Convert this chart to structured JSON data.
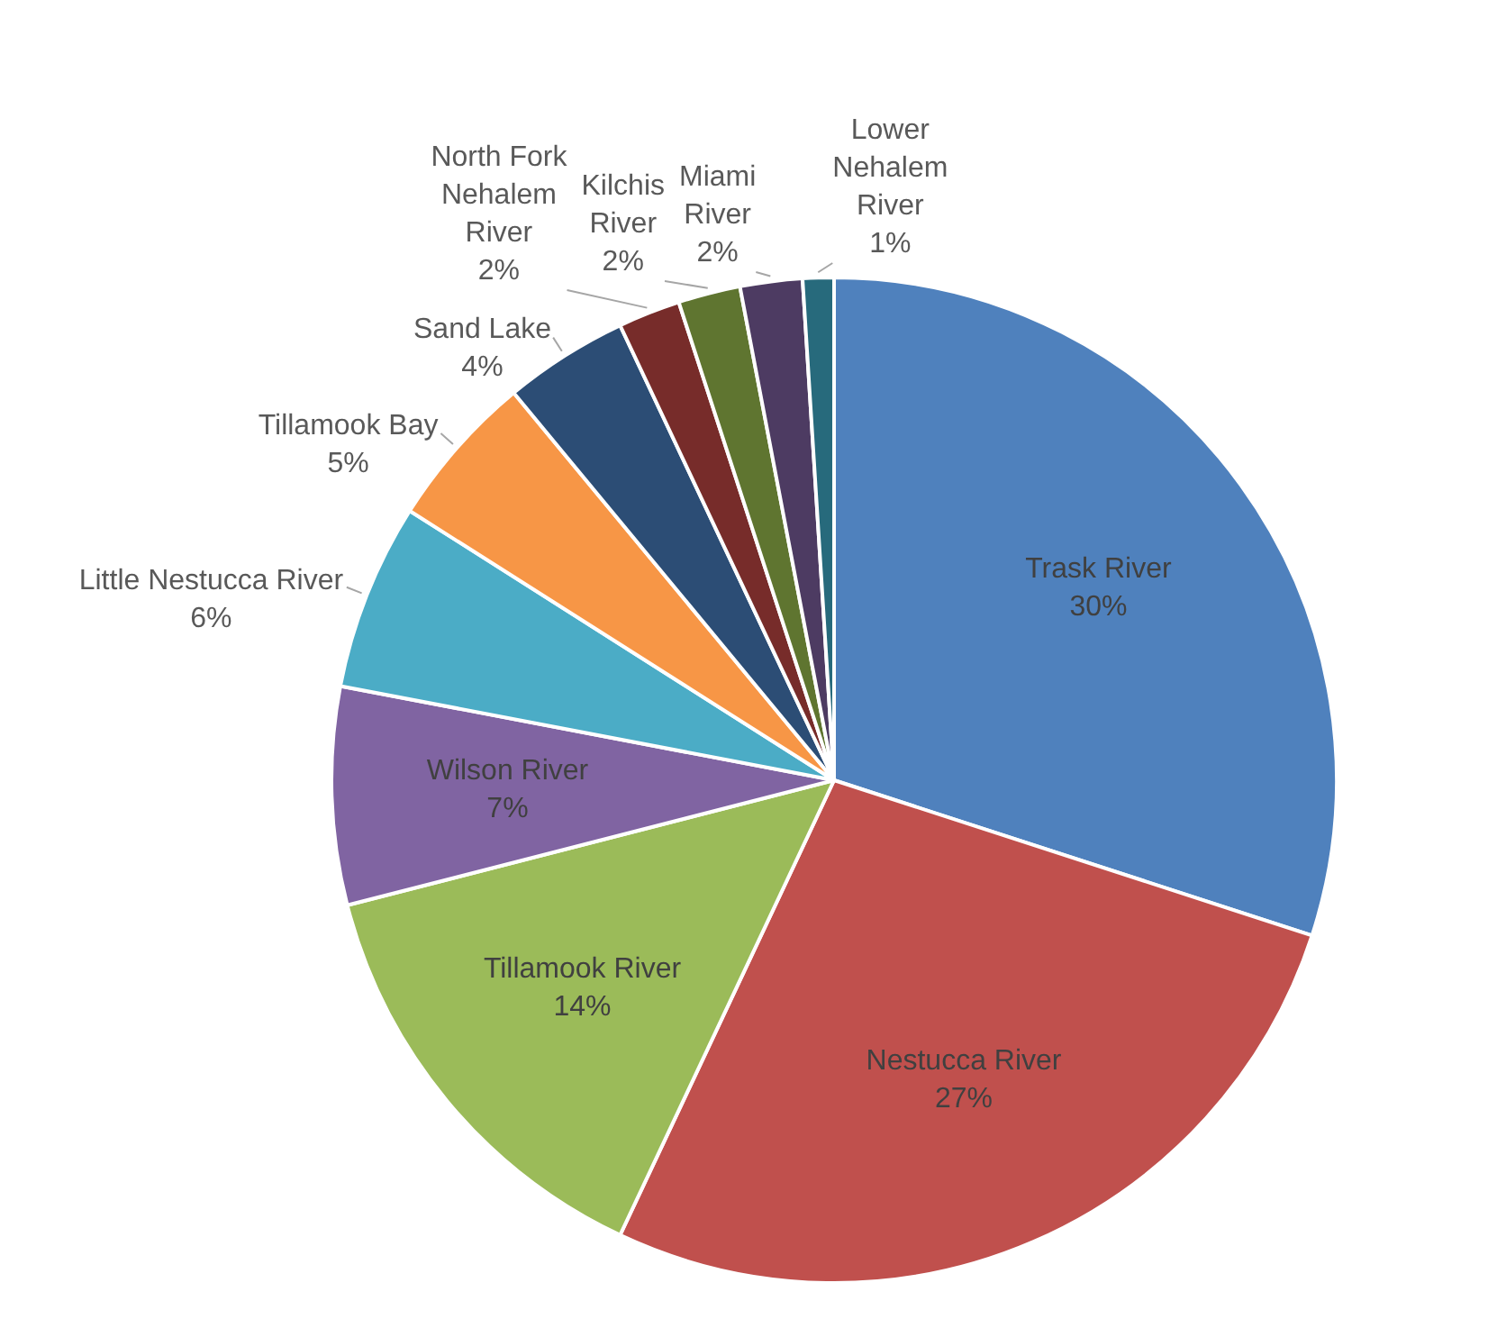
{
  "chart_data": {
    "type": "pie",
    "categories": [
      "Trask River",
      "Nestucca River",
      "Tillamook River",
      "Wilson River",
      "Little Nestucca River",
      "Tillamook Bay",
      "Sand Lake",
      "North Fork Nehalem River",
      "Kilchis River",
      "Miami River",
      "Lower Nehalem River"
    ],
    "values": [
      30,
      27,
      14,
      7,
      6,
      5,
      4,
      2,
      2,
      2,
      1
    ],
    "value_labels": [
      "30%",
      "27%",
      "14%",
      "7%",
      "6%",
      "5%",
      "4%",
      "2%",
      "2%",
      "2%",
      "1%"
    ],
    "colors": [
      "#4f81bd",
      "#c0504d",
      "#9bbb59",
      "#8064a2",
      "#4bacc6",
      "#f79646",
      "#2c4d75",
      "#772c2a",
      "#5f7530",
      "#4d3b62",
      "#276a7c"
    ],
    "legend": false
  }
}
